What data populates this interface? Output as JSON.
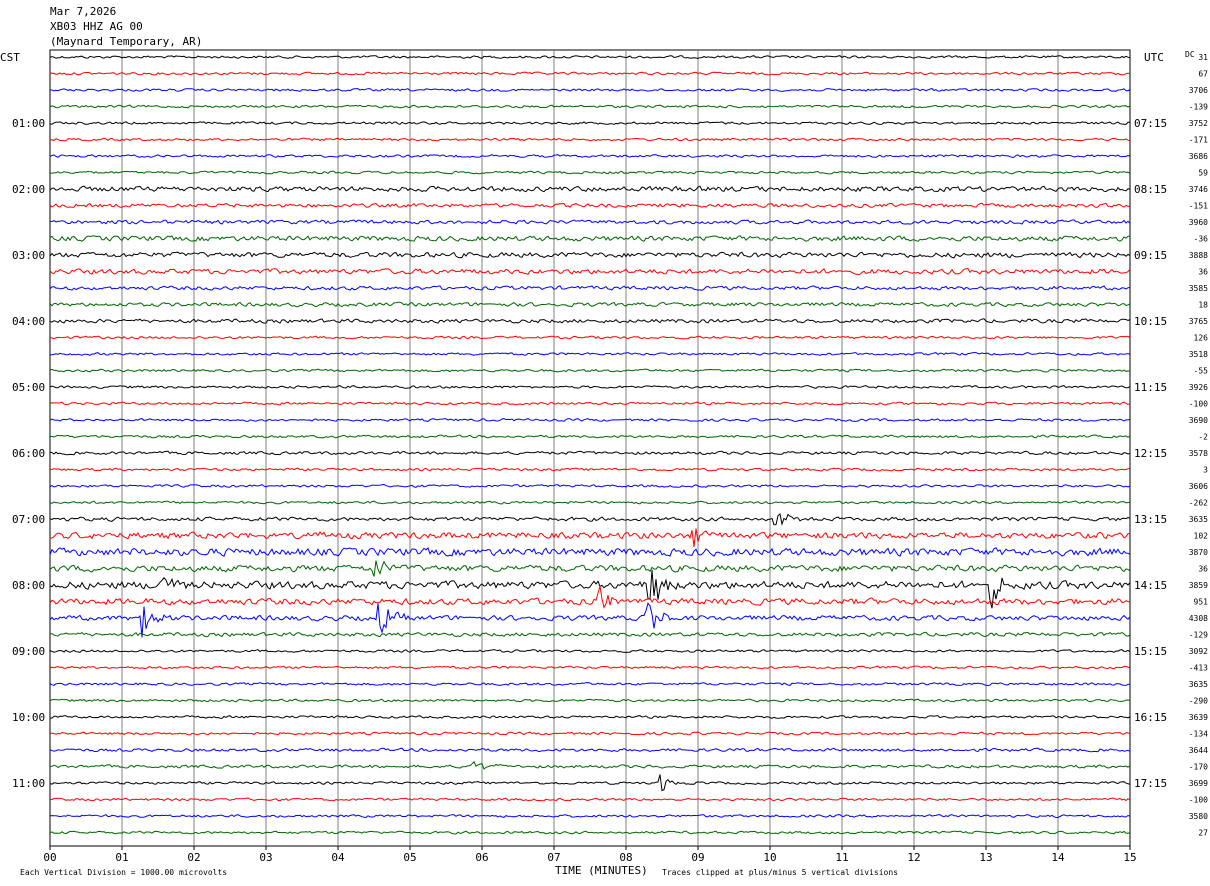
{
  "header": {
    "date": "Mar 7,2026",
    "station": "XB03 HHZ AG 00",
    "location": "(Maynard Temporary, AR)"
  },
  "left_zone": "CST",
  "right_zone": "UTC",
  "dc_label": "DC",
  "footer": {
    "scale_note": "Each Vertical Division = 1000.00 microvolts",
    "xlabel": "TIME (MINUTES)",
    "clip_note": "Traces clipped at plus/minus 5 vertical divisions"
  },
  "colors": {
    "trace_cycle": [
      "#000000",
      "#ff0000",
      "#0000ff",
      "#006400"
    ],
    "grid": "#808080"
  },
  "chart_data": {
    "type": "line",
    "title": "",
    "xlabel": "TIME (MINUTES)",
    "xlim": [
      0,
      15
    ],
    "x_ticks": [
      "00",
      "01",
      "02",
      "03",
      "04",
      "05",
      "06",
      "07",
      "08",
      "09",
      "10",
      "11",
      "12",
      "13",
      "14",
      "15"
    ],
    "trace_count": 48,
    "left_time_labels": [
      {
        "trace": 4,
        "label": "01:00"
      },
      {
        "trace": 8,
        "label": "02:00"
      },
      {
        "trace": 12,
        "label": "03:00"
      },
      {
        "trace": 16,
        "label": "04:00"
      },
      {
        "trace": 20,
        "label": "05:00"
      },
      {
        "trace": 24,
        "label": "06:00"
      },
      {
        "trace": 28,
        "label": "07:00"
      },
      {
        "trace": 32,
        "label": "08:00"
      },
      {
        "trace": 36,
        "label": "09:00"
      },
      {
        "trace": 40,
        "label": "10:00"
      },
      {
        "trace": 44,
        "label": "11:00"
      }
    ],
    "right_time_labels": [
      {
        "trace": 4,
        "label": "07:15"
      },
      {
        "trace": 8,
        "label": "08:15"
      },
      {
        "trace": 12,
        "label": "09:15"
      },
      {
        "trace": 16,
        "label": "10:15"
      },
      {
        "trace": 20,
        "label": "11:15"
      },
      {
        "trace": 24,
        "label": "12:15"
      },
      {
        "trace": 28,
        "label": "13:15"
      },
      {
        "trace": 32,
        "label": "14:15"
      },
      {
        "trace": 36,
        "label": "15:15"
      },
      {
        "trace": 40,
        "label": "16:15"
      },
      {
        "trace": 44,
        "label": "17:15"
      }
    ],
    "dc_offsets": [
      "31",
      "67",
      "3706",
      "-139",
      "3752",
      "-171",
      "3686",
      "59",
      "3746",
      "-151",
      "3960",
      "-36",
      "3888",
      "36",
      "3585",
      "18",
      "3765",
      "126",
      "3518",
      "-55",
      "3926",
      "-100",
      "3690",
      "-2",
      "3578",
      "3",
      "3606",
      "-262",
      "3635",
      "102",
      "3870",
      "36",
      "3859",
      "951",
      "4308",
      "-129",
      "3092",
      "-413",
      "3635",
      "-290",
      "3639",
      "-134",
      "3644",
      "-170",
      "3699",
      "-100",
      "3580",
      "27"
    ],
    "trace_amplitude": [
      1,
      1,
      1,
      1,
      1,
      1,
      1,
      1,
      2,
      1.5,
      1.5,
      2,
      2,
      2,
      1.5,
      1.5,
      1.5,
      1,
      1,
      1,
      1,
      1,
      1,
      1,
      1.2,
      1,
      1,
      1,
      1.5,
      2.5,
      3,
      2.5,
      3,
      2.5,
      2,
      1.5,
      1,
      1,
      1,
      1,
      1,
      1,
      1.2,
      1.2,
      1,
      1,
      1,
      1
    ],
    "events": [
      {
        "trace": 32,
        "minute": 8.35,
        "size": 6
      },
      {
        "trace": 32,
        "minute": 13.1,
        "size": 4
      },
      {
        "trace": 32,
        "minute": 1.55,
        "size": 3
      },
      {
        "trace": 34,
        "minute": 1.3,
        "size": 4
      },
      {
        "trace": 34,
        "minute": 4.6,
        "size": 4
      },
      {
        "trace": 34,
        "minute": 8.3,
        "size": 5
      },
      {
        "trace": 33,
        "minute": 7.65,
        "size": 3
      },
      {
        "trace": 31,
        "minute": 4.55,
        "size": 2.5
      },
      {
        "trace": 29,
        "minute": 3.5,
        "size": 2.5
      },
      {
        "trace": 29,
        "minute": 8.95,
        "size": 2.5
      },
      {
        "trace": 28,
        "minute": 10.1,
        "size": 2.5
      },
      {
        "trace": 43,
        "minute": 5.9,
        "size": 2
      },
      {
        "trace": 44,
        "minute": 8.5,
        "size": 2
      }
    ]
  }
}
